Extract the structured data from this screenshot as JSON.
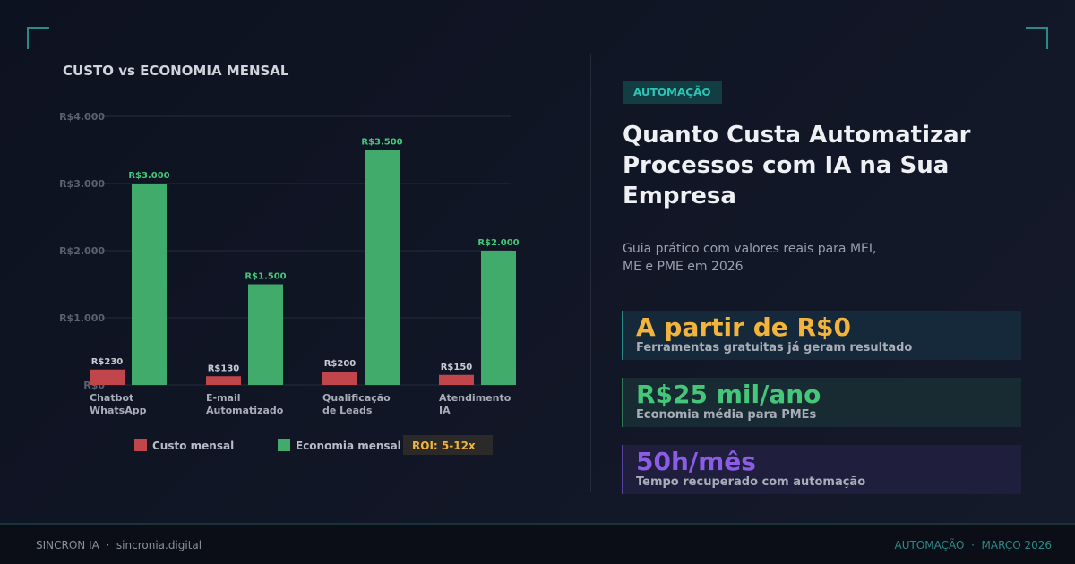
{
  "chart_data": {
    "type": "bar",
    "title": "CUSTO vs ECONOMIA MENSAL",
    "categories": [
      [
        "Chatbot",
        "WhatsApp"
      ],
      [
        "E-mail",
        "Automatizado"
      ],
      [
        "Qualificação",
        "de Leads"
      ],
      [
        "Atendimento",
        "IA"
      ]
    ],
    "series": [
      {
        "name": "Custo mensal",
        "values": [
          230,
          130,
          200,
          150
        ],
        "labels": [
          "R$230",
          "R$130",
          "R$200",
          "R$150"
        ],
        "color": "#c0464b"
      },
      {
        "name": "Economia mensal",
        "values": [
          3000,
          1500,
          3500,
          2000
        ],
        "labels": [
          "R$3.000",
          "R$1.500",
          "R$3.500",
          "R$2.000"
        ],
        "color": "#41ab6b"
      }
    ],
    "ylim": [
      0,
      4000
    ],
    "yticks": [
      0,
      1000,
      2000,
      3000,
      4000
    ],
    "ytick_labels": [
      "R$0",
      "R$1.000",
      "R$2.000",
      "R$3.000",
      "R$4.000"
    ],
    "grid": true,
    "legend_position": "bottom",
    "annotation": "ROI: 5-12x"
  },
  "right": {
    "tag": "AUTOMAÇÃO",
    "title": "Quanto Custa Automatizar Processos com IA na Sua Empresa",
    "subtitle": "Guia prático com valores reais para MEI, ME e PME em 2026",
    "stats": [
      {
        "value": "A partir de R$0",
        "desc": "Ferramentas gratuitas já geram resultado",
        "color": "#f2b43c"
      },
      {
        "value": "R$25 mil/ano",
        "desc": "Economia média para PMEs",
        "color": "#45c77a"
      },
      {
        "value": "50h/mês",
        "desc": "Tempo recuperado com automação",
        "color": "#8b5ce6"
      }
    ]
  },
  "footer": {
    "left": "SINCRON IA  ·  sincronia.digital",
    "right": "AUTOMAÇÃO  ·  MARÇO 2026"
  }
}
